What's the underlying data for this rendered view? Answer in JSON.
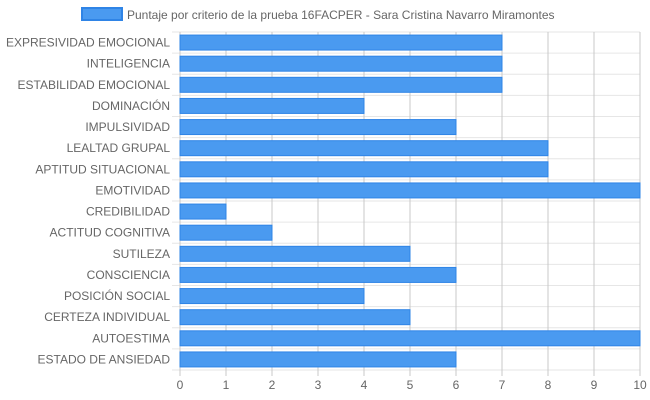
{
  "chart_data": {
    "type": "bar",
    "orientation": "horizontal",
    "categories": [
      "EXPRESIVIDAD EMOCIONAL",
      "INTELIGENCIA",
      "ESTABILIDAD EMOCIONAL",
      "DOMINACIÓN",
      "IMPULSIVIDAD",
      "LEALTAD GRUPAL",
      "APTITUD SITUACIONAL",
      "EMOTIVIDAD",
      "CREDIBILIDAD",
      "ACTITUD COGNITIVA",
      "SUTILEZA",
      "CONSCIENCIA",
      "POSICIÓN SOCIAL",
      "CERTEZA INDIVIDUAL",
      "AUTOESTIMA",
      "ESTADO DE ANSIEDAD"
    ],
    "series": [
      {
        "name": "Puntaje por criterio de la prueba 16FACPER - Sara Cristina Navarro Miramontes",
        "values": [
          7,
          7,
          7,
          4,
          6,
          8,
          8,
          10,
          1,
          2,
          5,
          6,
          4,
          5,
          10,
          6
        ],
        "color": "#4a9af0",
        "border_color": "#2f84e6"
      }
    ],
    "xlim": [
      0,
      10
    ],
    "x_ticks": [
      0,
      1,
      2,
      3,
      4,
      5,
      6,
      7,
      8,
      9,
      10
    ],
    "grid": true,
    "legend_position": "top"
  }
}
